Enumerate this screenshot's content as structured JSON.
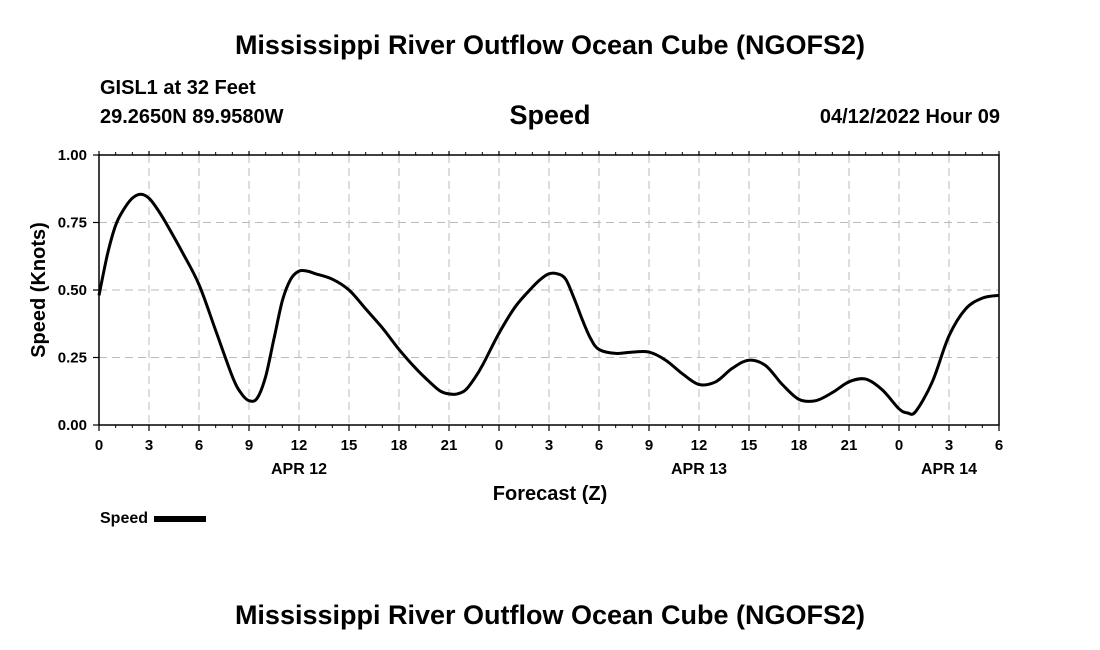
{
  "header": {
    "title": "Mississippi River Outflow Ocean Cube (NGOFS2)",
    "station": "GISL1 at 32 Feet",
    "coords": "29.2650N  89.9580W",
    "variable": "Speed",
    "datetime": "04/12/2022 Hour 09"
  },
  "footer": {
    "title": "Mississippi River Outflow Ocean Cube (NGOFS2)"
  },
  "legend": {
    "label": "Speed"
  },
  "colors": {
    "line": "#000000",
    "grid": "#bbbbbb"
  },
  "chart_data": {
    "type": "line",
    "title": "Speed",
    "xlabel": "Forecast (Z)",
    "ylabel": "Speed (Knots)",
    "xlim": [
      0,
      54
    ],
    "ylim": [
      0,
      1
    ],
    "grid": true,
    "legend_position": "bottom-left",
    "x_ticks": [
      0,
      3,
      6,
      9,
      12,
      15,
      18,
      21,
      24,
      27,
      30,
      33,
      36,
      39,
      42,
      45,
      48,
      51,
      54
    ],
    "x_tick_labels": [
      "0",
      "3",
      "6",
      "9",
      "12",
      "15",
      "18",
      "21",
      "0",
      "3",
      "6",
      "9",
      "12",
      "15",
      "18",
      "21",
      "0",
      "3",
      "6"
    ],
    "y_ticks": [
      0,
      0.25,
      0.5,
      0.75,
      1.0
    ],
    "y_tick_labels": [
      "0.00",
      "0.25",
      "0.50",
      "0.75",
      "1.00"
    ],
    "date_labels": [
      {
        "x": 12,
        "label": "APR 12"
      },
      {
        "x": 36,
        "label": "APR 13"
      },
      {
        "x": 51,
        "label": "APR 14"
      }
    ],
    "series": [
      {
        "name": "Speed",
        "x": [
          0,
          0.5,
          1,
          1.5,
          2,
          2.5,
          3,
          3.5,
          4,
          5,
          6,
          7,
          8,
          8.5,
          9,
          9.5,
          10,
          10.5,
          11,
          11.5,
          12,
          12.5,
          13,
          14,
          15,
          16,
          17,
          18,
          19,
          20,
          20.5,
          21,
          21.5,
          22,
          22.5,
          23,
          24,
          25,
          26,
          26.5,
          27,
          27.5,
          28,
          28.5,
          29,
          29.5,
          30,
          31,
          32,
          33,
          34,
          35,
          36,
          37,
          38,
          39,
          40,
          41,
          42,
          43,
          44,
          45,
          46,
          47,
          48,
          48.5,
          49,
          50,
          51,
          52,
          53,
          54
        ],
        "y": [
          0.48,
          0.63,
          0.74,
          0.8,
          0.84,
          0.855,
          0.84,
          0.8,
          0.75,
          0.64,
          0.52,
          0.35,
          0.18,
          0.12,
          0.09,
          0.1,
          0.18,
          0.32,
          0.46,
          0.54,
          0.57,
          0.57,
          0.56,
          0.54,
          0.5,
          0.43,
          0.36,
          0.28,
          0.21,
          0.15,
          0.125,
          0.115,
          0.115,
          0.13,
          0.17,
          0.22,
          0.34,
          0.44,
          0.51,
          0.54,
          0.56,
          0.56,
          0.54,
          0.47,
          0.39,
          0.32,
          0.28,
          0.265,
          0.27,
          0.27,
          0.24,
          0.19,
          0.15,
          0.16,
          0.21,
          0.24,
          0.22,
          0.15,
          0.095,
          0.09,
          0.12,
          0.16,
          0.17,
          0.13,
          0.06,
          0.045,
          0.05,
          0.16,
          0.33,
          0.43,
          0.47,
          0.48
        ]
      }
    ]
  }
}
